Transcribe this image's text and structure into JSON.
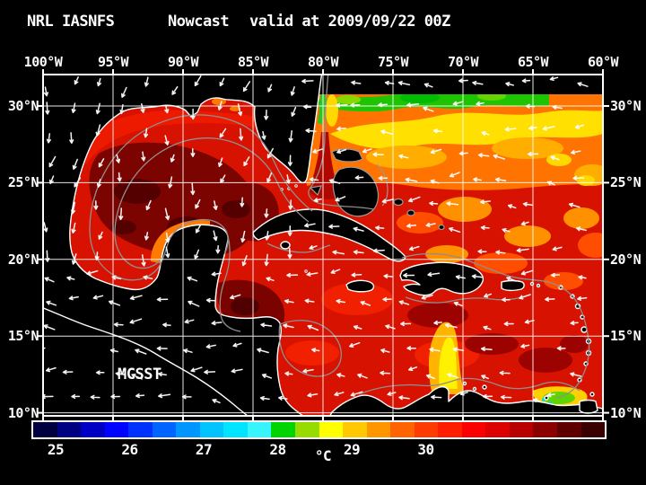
{
  "title": {
    "model": "NRL IASNFS",
    "product": "Nowcast",
    "valid": "valid at 2009/09/22 00Z"
  },
  "axes": {
    "top": [
      "100°W",
      "95°W",
      "90°W",
      "85°W",
      "80°W",
      "75°W",
      "70°W",
      "65°W",
      "60°W"
    ],
    "lat": [
      "30°N",
      "25°N",
      "20°N",
      "15°N",
      "10°N"
    ]
  },
  "overlay": {
    "label": "MCSST"
  },
  "colorbar": {
    "units": "°C",
    "ticks": [
      "25",
      "26",
      "27",
      "28",
      "29",
      "30"
    ],
    "cells": [
      "#000041",
      "#000083",
      "#0000c4",
      "#0003ff",
      "#0032ff",
      "#0064ff",
      "#0096ff",
      "#00c3ff",
      "#00e4ff",
      "#38f4ff",
      "#00d400",
      "#96dc00",
      "#ffff00",
      "#ffc800",
      "#ff9600",
      "#ff6400",
      "#ff3c00",
      "#ff1e00",
      "#fa0000",
      "#dc0000",
      "#b90000",
      "#8c0000",
      "#5f0000",
      "#3a0000"
    ]
  },
  "colors": {
    "background": "#000000",
    "frame": "#ffffff",
    "grid": "#ffffff",
    "coastline": "#ffffff",
    "contour": "#8f8f8f",
    "sea_base": "#d81200",
    "gulf_dark": "#7c0400",
    "atlantic_orange": "#ff7400",
    "warm_yellow": "#ffe000",
    "edge_green": "#1ec400",
    "text": "#ffffff"
  }
}
